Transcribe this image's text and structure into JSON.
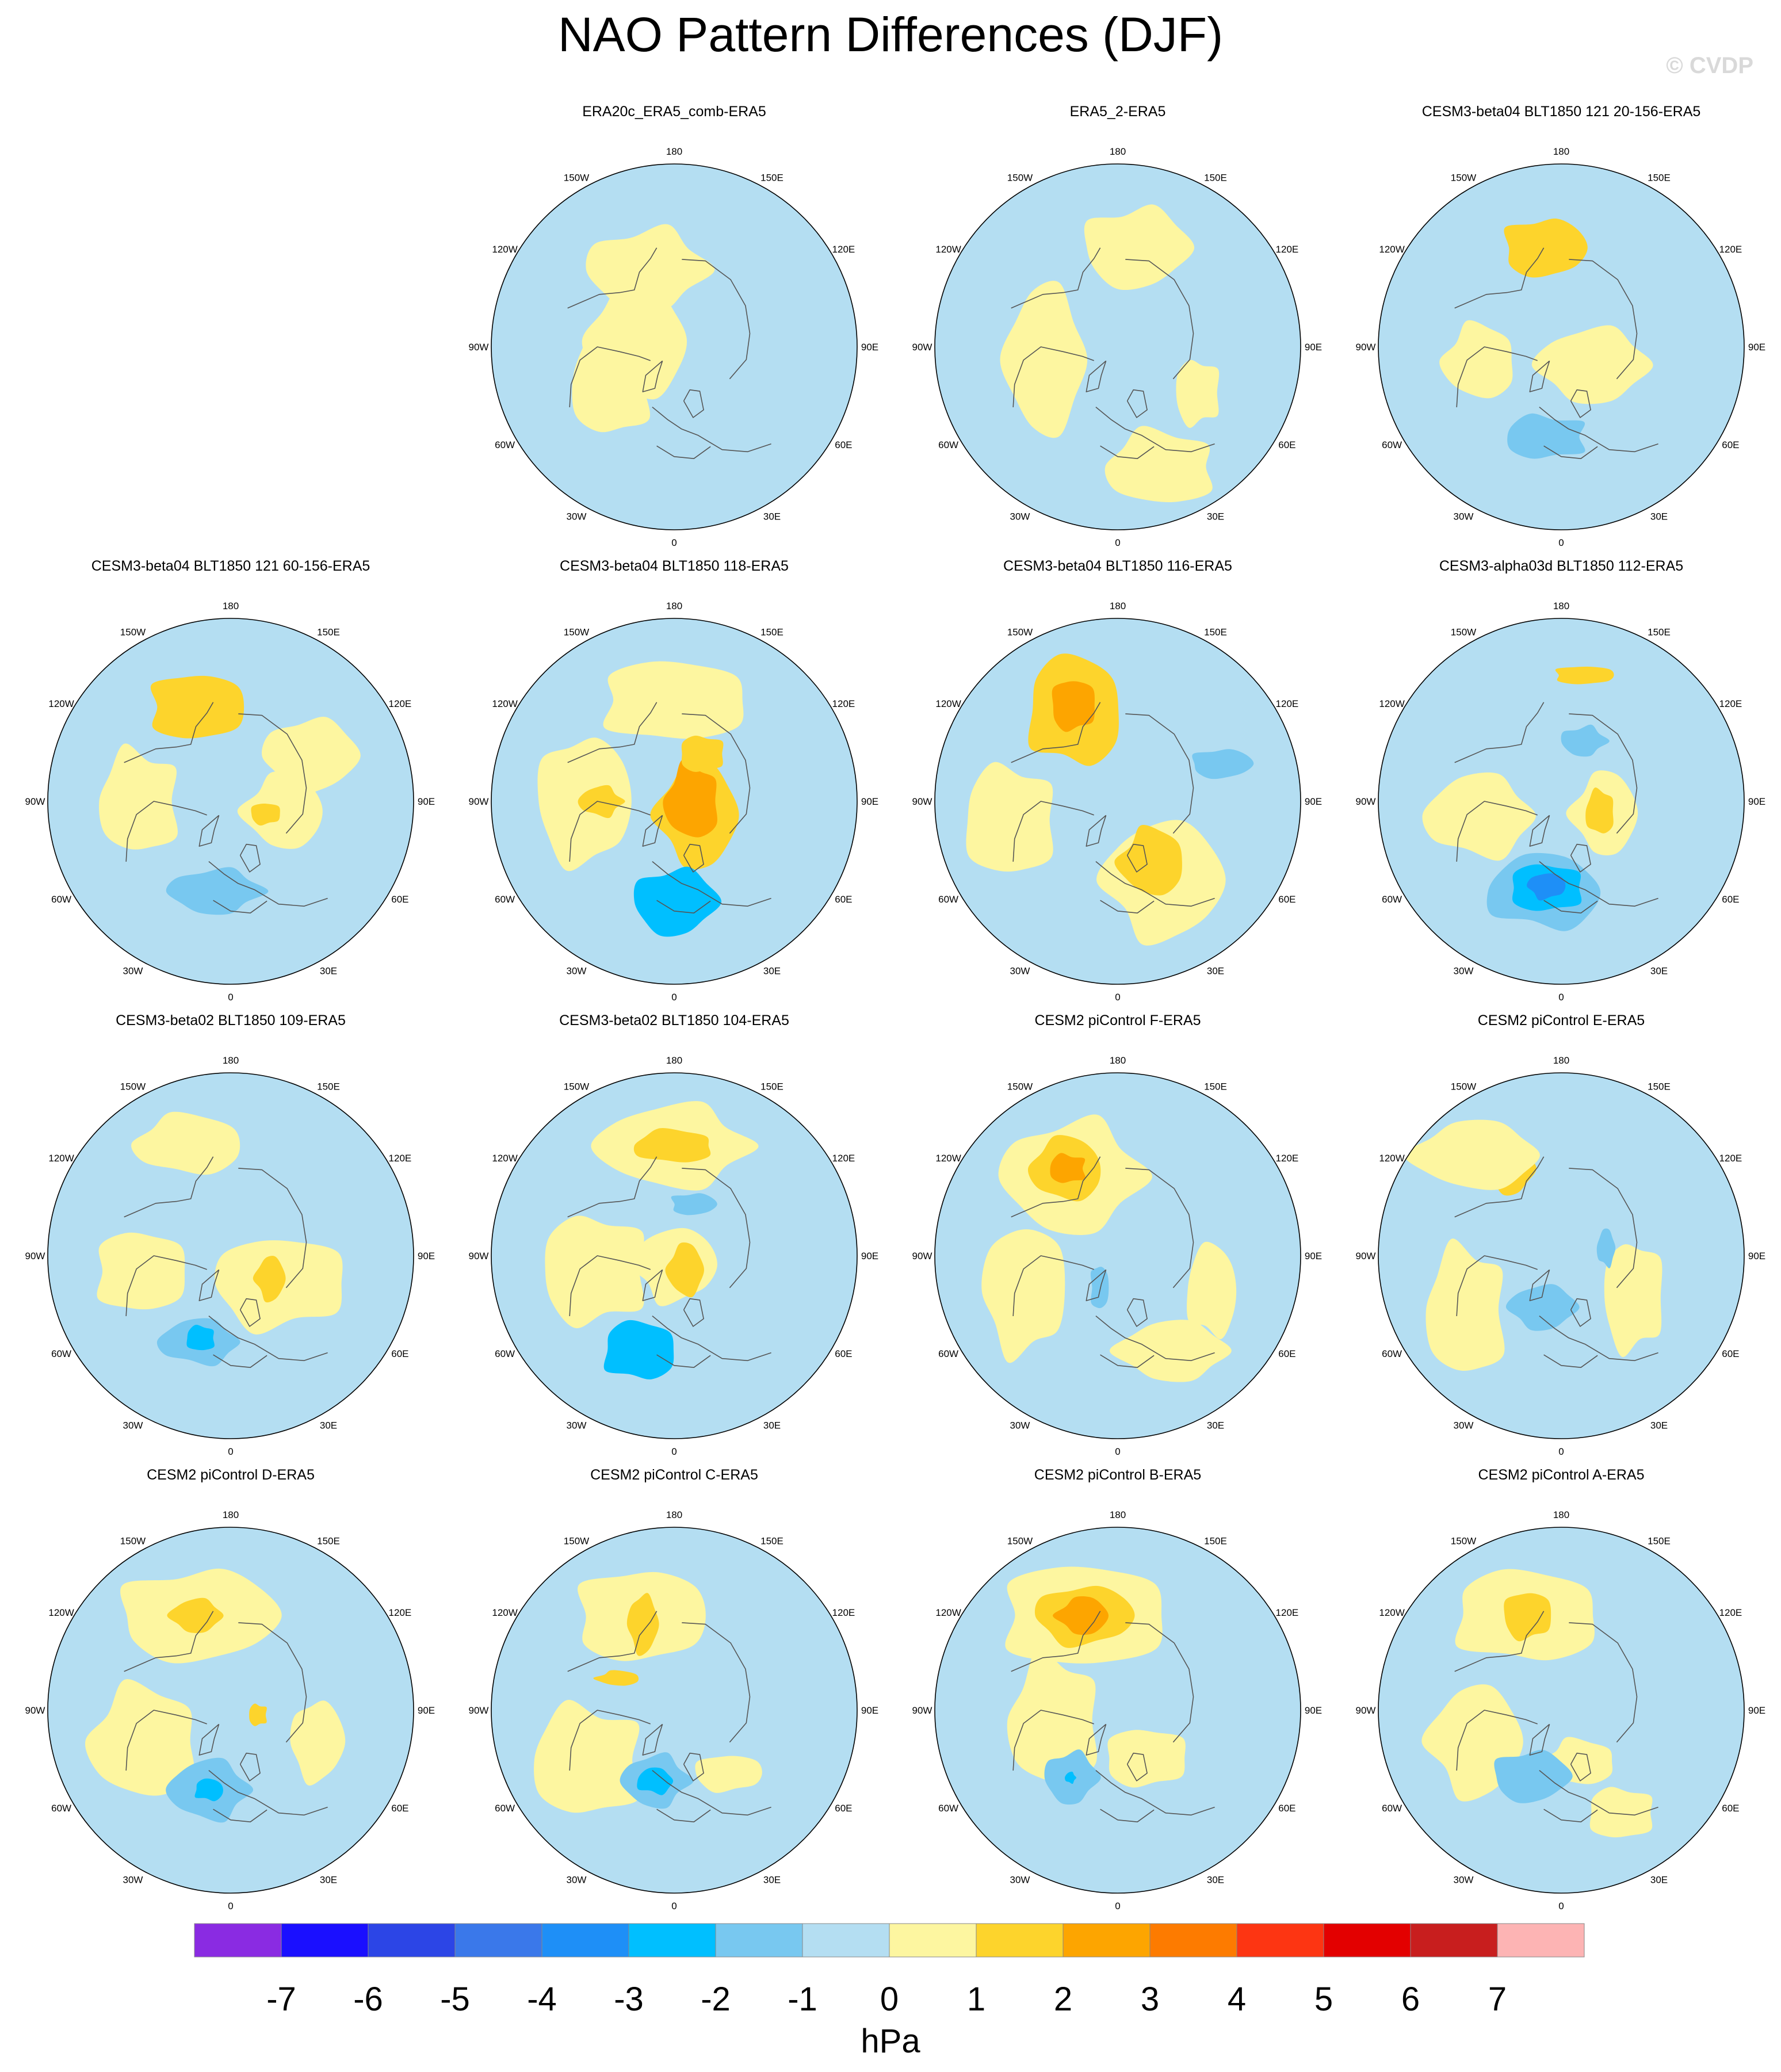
{
  "title": "NAO Pattern Differences (DJF)",
  "watermark": "© CVDP",
  "longitude_labels": [
    "180",
    "150E",
    "120E",
    "90E",
    "60E",
    "30E",
    "0",
    "30W",
    "60W",
    "90W",
    "120W",
    "150W"
  ],
  "colorbar": {
    "unit": "hPa",
    "colors": [
      "#8a2be2",
      "#1a0fff",
      "#2c45e6",
      "#3a78ea",
      "#1e8ff7",
      "#00bfff",
      "#78c8f0",
      "#b4def2",
      "#fdf6a0",
      "#fdd42c",
      "#fda500",
      "#fd7b00",
      "#fd3512",
      "#e30000",
      "#c81e1e",
      "#fdb4b4"
    ],
    "tick_labels": [
      "-7",
      "-6",
      "-5",
      "-4",
      "-3",
      "-2",
      "-1",
      "0",
      "1",
      "2",
      "3",
      "4",
      "5",
      "6",
      "7"
    ]
  },
  "panels": [
    {
      "title": "ERA20c_ERA5_comb-ERA5",
      "features": [
        {
          "lon": 200,
          "r": 0.45,
          "rx": 0.32,
          "ry": 0.22,
          "value": 0.5
        },
        {
          "lon": 260,
          "r": 0.2,
          "rx": 0.28,
          "ry": 0.3,
          "value": 0.5
        },
        {
          "lon": 300,
          "r": 0.4,
          "rx": 0.22,
          "ry": 0.28,
          "value": 0.5
        }
      ]
    },
    {
      "title": "ERA5_2-ERA5",
      "features": [
        {
          "lon": 170,
          "r": 0.55,
          "rx": 0.28,
          "ry": 0.22,
          "value": 0.5
        },
        {
          "lon": 280,
          "r": 0.4,
          "rx": 0.22,
          "ry": 0.4,
          "value": 0.5
        },
        {
          "lon": 20,
          "r": 0.7,
          "rx": 0.3,
          "ry": 0.2,
          "value": 0.5
        },
        {
          "lon": 60,
          "r": 0.5,
          "rx": 0.12,
          "ry": 0.18,
          "value": 0.5
        }
      ]
    },
    {
      "title": "CESM3-beta04 BLT1850 121 20-156-ERA5",
      "features": [
        {
          "lon": 190,
          "r": 0.55,
          "rx": 0.22,
          "ry": 0.16,
          "value": 1.4
        },
        {
          "lon": 60,
          "r": 0.2,
          "rx": 0.3,
          "ry": 0.2,
          "value": 0.5
        },
        {
          "lon": 280,
          "r": 0.45,
          "rx": 0.2,
          "ry": 0.2,
          "value": 0.5
        },
        {
          "lon": 350,
          "r": 0.5,
          "rx": 0.22,
          "ry": 0.12,
          "value": -1.5
        }
      ]
    },
    {
      "title": "CESM3-beta04 BLT1850 121 60-156-ERA5",
      "features": [
        {
          "lon": 200,
          "r": 0.55,
          "rx": 0.26,
          "ry": 0.18,
          "value": 1.5
        },
        {
          "lon": 120,
          "r": 0.5,
          "rx": 0.25,
          "ry": 0.2,
          "value": 0.5
        },
        {
          "lon": 80,
          "r": 0.3,
          "rx": 0.22,
          "ry": 0.2,
          "value": 0.5
        },
        {
          "lon": 270,
          "r": 0.5,
          "rx": 0.22,
          "ry": 0.28,
          "value": 0.5
        },
        {
          "lon": 70,
          "r": 0.2,
          "rx": 0.08,
          "ry": 0.06,
          "value": 1.3
        },
        {
          "lon": 350,
          "r": 0.5,
          "rx": 0.25,
          "ry": 0.12,
          "value": -1.6
        }
      ]
    },
    {
      "title": "CESM3-beta04 BLT1850 118-ERA5",
      "features": [
        {
          "lon": 180,
          "r": 0.55,
          "rx": 0.4,
          "ry": 0.22,
          "value": 0.5
        },
        {
          "lon": 270,
          "r": 0.5,
          "rx": 0.25,
          "ry": 0.35,
          "value": 0.5
        },
        {
          "lon": 60,
          "r": 0.15,
          "rx": 0.22,
          "ry": 0.28,
          "value": 1.5
        },
        {
          "lon": 90,
          "r": 0.1,
          "rx": 0.15,
          "ry": 0.2,
          "value": 2.4
        },
        {
          "lon": 150,
          "r": 0.3,
          "rx": 0.12,
          "ry": 0.1,
          "value": 1.4
        },
        {
          "lon": 0,
          "r": 0.55,
          "rx": 0.22,
          "ry": 0.18,
          "value": -2.4
        },
        {
          "lon": 270,
          "r": 0.4,
          "rx": 0.12,
          "ry": 0.08,
          "value": 1.4
        }
      ]
    },
    {
      "title": "CESM3-beta04 BLT1850 116-ERA5",
      "features": [
        {
          "lon": 205,
          "r": 0.55,
          "rx": 0.26,
          "ry": 0.3,
          "value": 1.5
        },
        {
          "lon": 205,
          "r": 0.58,
          "rx": 0.12,
          "ry": 0.14,
          "value": 2.5
        },
        {
          "lon": 30,
          "r": 0.5,
          "rx": 0.32,
          "ry": 0.32,
          "value": 0.5
        },
        {
          "lon": 30,
          "r": 0.38,
          "rx": 0.18,
          "ry": 0.18,
          "value": 1.5
        },
        {
          "lon": 280,
          "r": 0.6,
          "rx": 0.25,
          "ry": 0.3,
          "value": 0.5
        },
        {
          "lon": 110,
          "r": 0.6,
          "rx": 0.16,
          "ry": 0.08,
          "value": -1.4
        }
      ]
    },
    {
      "title": "CESM3-alpha03d BLT1850 112-ERA5",
      "features": [
        {
          "lon": 350,
          "r": 0.5,
          "rx": 0.32,
          "ry": 0.2,
          "value": -1.5
        },
        {
          "lon": 350,
          "r": 0.48,
          "rx": 0.2,
          "ry": 0.13,
          "value": -2.5
        },
        {
          "lon": 350,
          "r": 0.47,
          "rx": 0.1,
          "ry": 0.07,
          "value": -3.4
        },
        {
          "lon": 75,
          "r": 0.25,
          "rx": 0.18,
          "ry": 0.22,
          "value": 0.5
        },
        {
          "lon": 75,
          "r": 0.22,
          "rx": 0.08,
          "ry": 0.12,
          "value": 1.5
        },
        {
          "lon": 170,
          "r": 0.7,
          "rx": 0.16,
          "ry": 0.05,
          "value": 1.3
        },
        {
          "lon": 160,
          "r": 0.35,
          "rx": 0.12,
          "ry": 0.08,
          "value": -1.4
        },
        {
          "lon": 280,
          "r": 0.45,
          "rx": 0.3,
          "ry": 0.22,
          "value": 0.5
        }
      ]
    },
    {
      "title": "CESM3-beta02 BLT1850 109-ERA5",
      "features": [
        {
          "lon": 340,
          "r": 0.5,
          "rx": 0.22,
          "ry": 0.12,
          "value": -1.5
        },
        {
          "lon": 340,
          "r": 0.48,
          "rx": 0.08,
          "ry": 0.07,
          "value": -2.4
        },
        {
          "lon": 60,
          "r": 0.3,
          "rx": 0.35,
          "ry": 0.25,
          "value": 0.5
        },
        {
          "lon": 60,
          "r": 0.25,
          "rx": 0.08,
          "ry": 0.12,
          "value": 1.4
        },
        {
          "lon": 200,
          "r": 0.65,
          "rx": 0.3,
          "ry": 0.16,
          "value": 0.5
        },
        {
          "lon": 280,
          "r": 0.5,
          "rx": 0.25,
          "ry": 0.22,
          "value": 0.5
        }
      ]
    },
    {
      "title": "CESM3-beta02 BLT1850 104-ERA5",
      "features": [
        {
          "lon": 180,
          "r": 0.6,
          "rx": 0.42,
          "ry": 0.22,
          "value": 0.5
        },
        {
          "lon": 180,
          "r": 0.6,
          "rx": 0.22,
          "ry": 0.09,
          "value": 1.4
        },
        {
          "lon": 280,
          "r": 0.45,
          "rx": 0.28,
          "ry": 0.3,
          "value": 0.5
        },
        {
          "lon": 0,
          "r": 0.05,
          "rx": 0.22,
          "ry": 0.2,
          "value": 0.5
        },
        {
          "lon": 40,
          "r": 0.1,
          "rx": 0.1,
          "ry": 0.14,
          "value": 1.4
        },
        {
          "lon": 340,
          "r": 0.55,
          "rx": 0.2,
          "ry": 0.16,
          "value": -2.4
        },
        {
          "lon": 160,
          "r": 0.3,
          "rx": 0.12,
          "ry": 0.06,
          "value": -1.4
        }
      ]
    },
    {
      "title": "CESM2 piControl F-ERA5",
      "features": [
        {
          "lon": 210,
          "r": 0.5,
          "rx": 0.38,
          "ry": 0.3,
          "value": 0.5
        },
        {
          "lon": 210,
          "r": 0.55,
          "rx": 0.2,
          "ry": 0.17,
          "value": 1.5
        },
        {
          "lon": 210,
          "r": 0.55,
          "rx": 0.1,
          "ry": 0.08,
          "value": 2.4
        },
        {
          "lon": 290,
          "r": 0.55,
          "rx": 0.22,
          "ry": 0.35,
          "value": 0.5
        },
        {
          "lon": 30,
          "r": 0.6,
          "rx": 0.3,
          "ry": 0.16,
          "value": 0.5
        },
        {
          "lon": 70,
          "r": 0.55,
          "rx": 0.14,
          "ry": 0.25,
          "value": 0.5
        },
        {
          "lon": 330,
          "r": 0.2,
          "rx": 0.05,
          "ry": 0.12,
          "value": -1.4
        }
      ]
    },
    {
      "title": "CESM2 piControl E-ERA5",
      "features": [
        {
          "lon": 210,
          "r": 0.55,
          "rx": 0.12,
          "ry": 0.14,
          "value": 1.4
        },
        {
          "lon": 220,
          "r": 0.72,
          "rx": 0.35,
          "ry": 0.18,
          "value": 0.5
        },
        {
          "lon": 300,
          "r": 0.6,
          "rx": 0.22,
          "ry": 0.35,
          "value": 0.5
        },
        {
          "lon": 60,
          "r": 0.45,
          "rx": 0.16,
          "ry": 0.3,
          "value": 0.5
        },
        {
          "lon": 340,
          "r": 0.3,
          "rx": 0.18,
          "ry": 0.12,
          "value": -1.4
        },
        {
          "lon": 100,
          "r": 0.25,
          "rx": 0.05,
          "ry": 0.1,
          "value": -1.4
        }
      ]
    },
    {
      "title": "CESM2 piControl D-ERA5",
      "features": [
        {
          "lon": 200,
          "r": 0.55,
          "rx": 0.42,
          "ry": 0.25,
          "value": 0.5
        },
        {
          "lon": 200,
          "r": 0.55,
          "rx": 0.14,
          "ry": 0.09,
          "value": 1.4
        },
        {
          "lon": 290,
          "r": 0.5,
          "rx": 0.3,
          "ry": 0.3,
          "value": 0.5
        },
        {
          "lon": 80,
          "r": 0.15,
          "rx": 0.05,
          "ry": 0.06,
          "value": 1.4
        },
        {
          "lon": 70,
          "r": 0.5,
          "rx": 0.14,
          "ry": 0.22,
          "value": 0.5
        },
        {
          "lon": 345,
          "r": 0.45,
          "rx": 0.22,
          "ry": 0.16,
          "value": -1.5
        },
        {
          "lon": 345,
          "r": 0.45,
          "rx": 0.08,
          "ry": 0.06,
          "value": -2.4
        }
      ]
    },
    {
      "title": "CESM2 piControl C-ERA5",
      "features": [
        {
          "lon": 200,
          "r": 0.55,
          "rx": 0.35,
          "ry": 0.25,
          "value": 0.5
        },
        {
          "lon": 200,
          "r": 0.5,
          "rx": 0.08,
          "ry": 0.16,
          "value": 1.4
        },
        {
          "lon": 240,
          "r": 0.35,
          "rx": 0.12,
          "ry": 0.04,
          "value": 1.3
        },
        {
          "lon": 300,
          "r": 0.55,
          "rx": 0.3,
          "ry": 0.3,
          "value": 0.5
        },
        {
          "lon": 40,
          "r": 0.45,
          "rx": 0.18,
          "ry": 0.1,
          "value": 0.5
        },
        {
          "lon": 345,
          "r": 0.4,
          "rx": 0.18,
          "ry": 0.14,
          "value": -1.5
        },
        {
          "lon": 345,
          "r": 0.4,
          "rx": 0.1,
          "ry": 0.07,
          "value": -2.4
        }
      ]
    },
    {
      "title": "CESM2 piControl B-ERA5",
      "features": [
        {
          "lon": 200,
          "r": 0.55,
          "rx": 0.45,
          "ry": 0.28,
          "value": 0.5
        },
        {
          "lon": 200,
          "r": 0.55,
          "rx": 0.26,
          "ry": 0.16,
          "value": 1.5
        },
        {
          "lon": 200,
          "r": 0.55,
          "rx": 0.14,
          "ry": 0.1,
          "value": 2.4
        },
        {
          "lon": 280,
          "r": 0.35,
          "rx": 0.25,
          "ry": 0.35,
          "value": 0.5
        },
        {
          "lon": 30,
          "r": 0.3,
          "rx": 0.22,
          "ry": 0.16,
          "value": 0.5
        },
        {
          "lon": 325,
          "r": 0.45,
          "rx": 0.14,
          "ry": 0.14,
          "value": -1.5
        },
        {
          "lon": 325,
          "r": 0.45,
          "rx": 0.03,
          "ry": 0.03,
          "value": -2.4
        }
      ]
    },
    {
      "title": "CESM2 piControl A-ERA5",
      "features": [
        {
          "lon": 200,
          "r": 0.55,
          "rx": 0.4,
          "ry": 0.25,
          "value": 0.5
        },
        {
          "lon": 200,
          "r": 0.55,
          "rx": 0.13,
          "ry": 0.13,
          "value": 1.4
        },
        {
          "lon": 290,
          "r": 0.5,
          "rx": 0.25,
          "ry": 0.3,
          "value": 0.5
        },
        {
          "lon": 20,
          "r": 0.3,
          "rx": 0.2,
          "ry": 0.12,
          "value": 0.5
        },
        {
          "lon": 30,
          "r": 0.65,
          "rx": 0.18,
          "ry": 0.14,
          "value": 0.5
        },
        {
          "lon": 335,
          "r": 0.4,
          "rx": 0.2,
          "ry": 0.14,
          "value": -1.5
        }
      ]
    }
  ]
}
